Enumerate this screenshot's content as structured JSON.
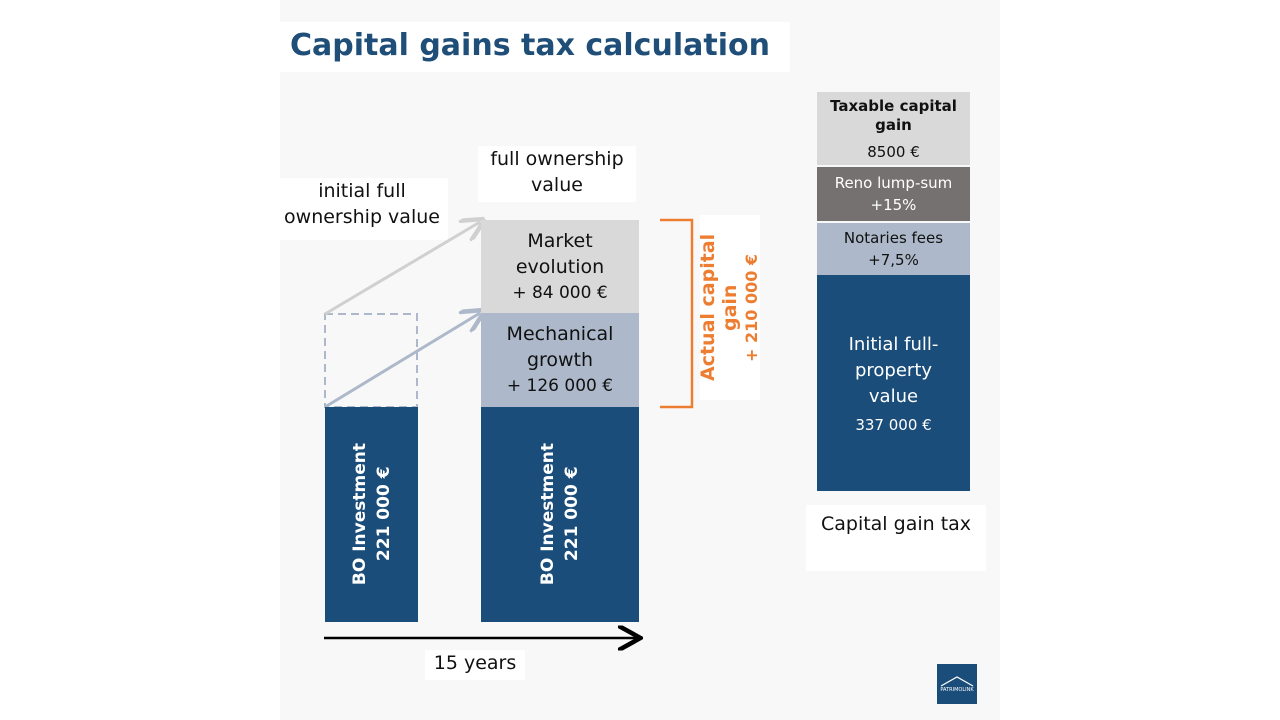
{
  "title": "Capital gains tax calculation",
  "left_label": "initial full ownership value",
  "right_label": "full ownership value",
  "bar1": {
    "line1": "BO Investment",
    "line2": "221 000 €"
  },
  "bar2": {
    "line1": "BO Investment",
    "line2": "221 000 €"
  },
  "mechanical": {
    "line1": "Mechanical growth",
    "line2": "+ 126 000 €"
  },
  "market": {
    "line1": "Market evolution",
    "line2": "+ 84 000 €"
  },
  "actual_gain": {
    "line1": "Actual capital gain",
    "line2": "+ 210 000 €"
  },
  "timeline": "15 years",
  "tax_stack": {
    "taxable_title": "Taxable capital gain",
    "taxable_value": "8500 €",
    "reno": "Reno lump-sum",
    "reno_value": "+15%",
    "notaries": "Notaries fees",
    "notaries_value": "+7,5%",
    "initial": "Initial full-property value",
    "initial_value": "337 000 €",
    "caption": "Capital gain tax"
  },
  "logo": "PATRIMOLINK",
  "colors": {
    "navy": "#1b4d7a",
    "light_blue": "#adb9ca",
    "light_grey": "#d9d9d9",
    "dark_grey": "#767171",
    "orange": "#ed7d31",
    "title": "#1f4e79"
  }
}
